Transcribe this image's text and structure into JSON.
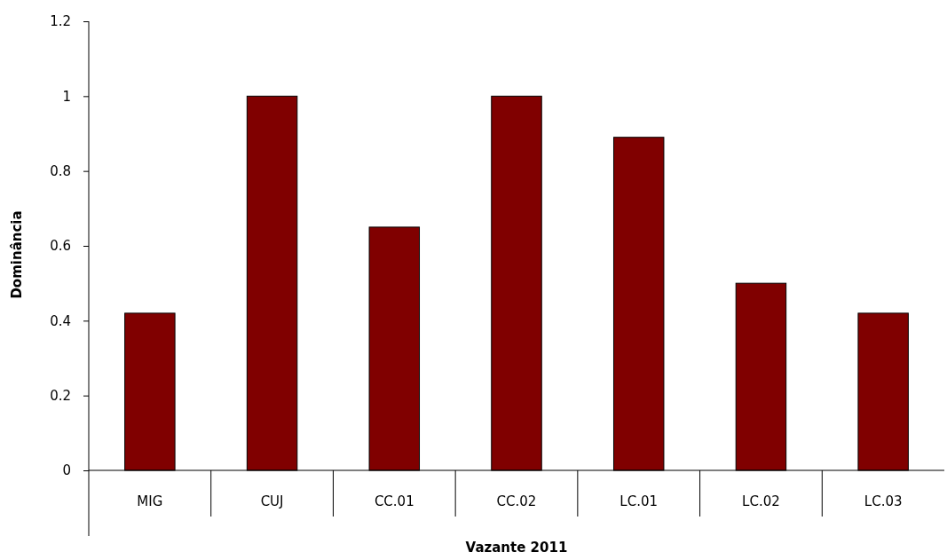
{
  "chart_data": {
    "type": "bar",
    "xlabel": "Vazante 2011",
    "ylabel": "Dominância",
    "categories": [
      "MIG",
      "CUJ",
      "CC.01",
      "CC.02",
      "LC.01",
      "LC.02",
      "LC.03"
    ],
    "values": [
      0.42,
      1.0,
      0.65,
      1.0,
      0.89,
      0.5,
      0.42
    ],
    "color": "#800000",
    "ylim": [
      0,
      1.2
    ],
    "yticks": [
      0,
      0.2,
      0.4,
      0.6,
      0.8,
      1,
      1.2
    ]
  }
}
